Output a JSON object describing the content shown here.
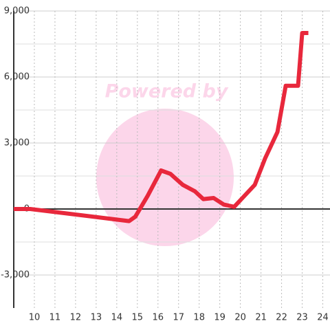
{
  "chart_data": {
    "type": "line",
    "watermark": "Powered by",
    "x": [
      9,
      9.8,
      14.6,
      14.9,
      15.5,
      16.15,
      16.6,
      17.2,
      17.8,
      18.2,
      18.7,
      19.2,
      19.7,
      20.1,
      20.7,
      21.2,
      21.8,
      22.2,
      22.8,
      23.0,
      23.3
    ],
    "series": [
      {
        "color": "#e8283c",
        "values": [
          0,
          0,
          -550,
          -350,
          600,
          1750,
          1600,
          1100,
          800,
          450,
          500,
          200,
          100,
          500,
          1100,
          2300,
          3500,
          5600,
          5600,
          8000,
          8000
        ]
      }
    ],
    "xlim": [
      9,
      24.35
    ],
    "ylim": [
      -4500,
      9000
    ],
    "xticks": [
      10,
      11,
      12,
      13,
      14,
      15,
      16,
      17,
      18,
      19,
      20,
      21,
      22,
      23,
      24
    ],
    "yticks": [
      {
        "value": -3000,
        "label": "-3,000"
      },
      0,
      {
        "value": 3000,
        "label": "3,000"
      },
      {
        "value": 6000,
        "label": "6,000"
      },
      {
        "value": 9000,
        "label": "9,000"
      }
    ],
    "y_minor_ticks": [
      -1500,
      1500,
      4500,
      7500
    ],
    "grid": true
  }
}
